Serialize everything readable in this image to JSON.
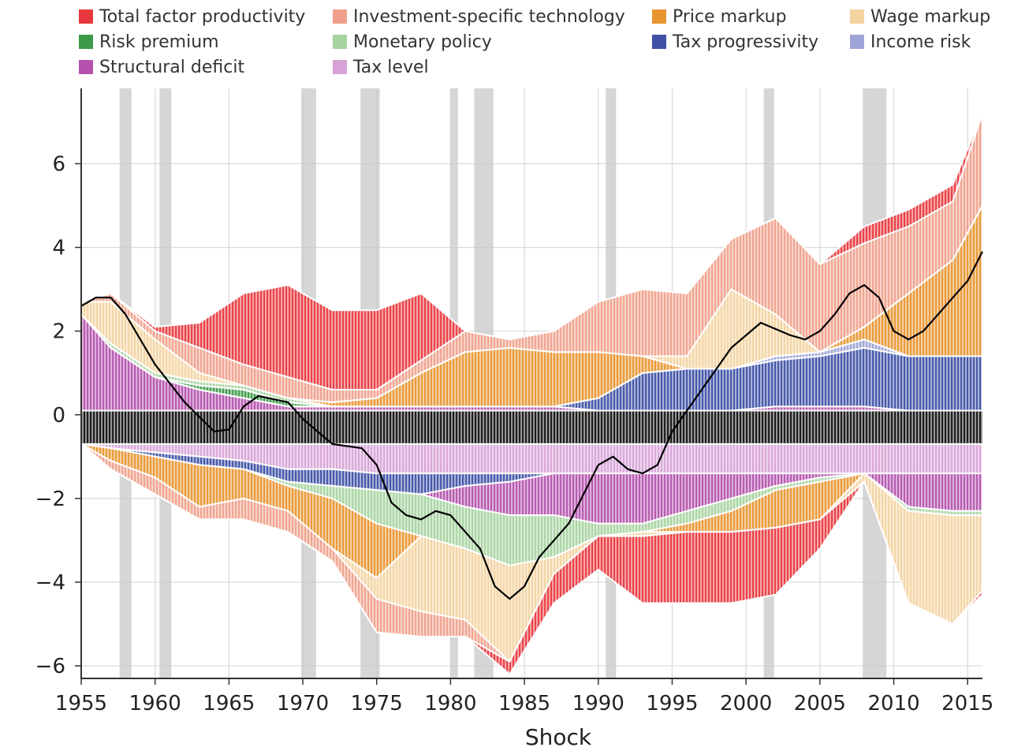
{
  "legend": [
    {
      "name": "Total factor productivity",
      "color": "#e8383d"
    },
    {
      "name": "Investment-specific technology",
      "color": "#f0a08a"
    },
    {
      "name": "Price markup",
      "color": "#e8952f"
    },
    {
      "name": "Wage markup",
      "color": "#f3d3a0"
    },
    {
      "name": "Risk premium",
      "color": "#3a9a47"
    },
    {
      "name": "Monetary policy",
      "color": "#a7d3a0"
    },
    {
      "name": "Tax progressivity",
      "color": "#3f51a6"
    },
    {
      "name": "Income risk",
      "color": "#9ea4d6"
    },
    {
      "name": "Structural deficit",
      "color": "#b452ad"
    },
    {
      "name": "Tax level",
      "color": "#d7a3d7"
    }
  ],
  "chart_data": {
    "type": "area",
    "subtype": "stacked decomposition with contribution bands and overlay line",
    "xlabel": "Shock",
    "ylabel": "",
    "xlim": [
      1955,
      2016
    ],
    "ylim": [
      -6.3,
      7.8
    ],
    "xticks": [
      "1955",
      "1960",
      "1965",
      "1970",
      "1975",
      "1980",
      "1985",
      "1990",
      "1995",
      "2000",
      "2005",
      "2010",
      "2015"
    ],
    "yticks": [
      {
        "value": 6,
        "label": "6"
      },
      {
        "value": 4,
        "label": "4"
      },
      {
        "value": 2,
        "label": "2"
      },
      {
        "value": 0,
        "label": "0"
      },
      {
        "value": -2,
        "label": "−2"
      },
      {
        "value": -4,
        "label": "−4"
      },
      {
        "value": -6,
        "label": "−6"
      }
    ],
    "grid": true,
    "legend_position": "top",
    "recessions": [
      [
        1957.6,
        1958.4
      ],
      [
        1960.3,
        1961.1
      ],
      [
        1969.9,
        1970.9
      ],
      [
        1973.9,
        1975.2
      ],
      [
        1980.0,
        1980.5
      ],
      [
        1981.6,
        1982.9
      ],
      [
        1990.5,
        1991.2
      ],
      [
        2001.2,
        2001.9
      ],
      [
        2007.9,
        2009.5
      ]
    ],
    "x": [
      1955,
      1957,
      1960,
      1963,
      1966,
      1969,
      1972,
      1975,
      1978,
      1981,
      1984,
      1987,
      1990,
      1993,
      1996,
      1999,
      2002,
      2005,
      2008,
      2011,
      2014,
      2016
    ],
    "line": {
      "name": "",
      "color": "#000000",
      "x": [
        1955,
        1956,
        1957,
        1958,
        1960,
        1962,
        1964,
        1965,
        1966,
        1967,
        1969,
        1970,
        1972,
        1974,
        1975,
        1976,
        1977,
        1978,
        1979,
        1980,
        1981,
        1982,
        1983,
        1984,
        1985,
        1986,
        1988,
        1990,
        1991,
        1992,
        1993,
        1994,
        1995,
        1997,
        1999,
        2001,
        2003,
        2004,
        2005,
        2006,
        2007,
        2008,
        2009,
        2010,
        2011,
        2012,
        2013,
        2014,
        2015,
        2016
      ],
      "values": [
        2.6,
        2.8,
        2.8,
        2.4,
        1.2,
        0.3,
        -0.4,
        -0.35,
        0.2,
        0.45,
        0.3,
        -0.1,
        -0.7,
        -0.8,
        -1.2,
        -2.1,
        -2.4,
        -2.5,
        -2.3,
        -2.4,
        -2.8,
        -3.2,
        -4.1,
        -4.4,
        -4.1,
        -3.4,
        -2.6,
        -1.2,
        -1.0,
        -1.3,
        -1.4,
        -1.2,
        -0.4,
        0.6,
        1.6,
        2.2,
        1.9,
        1.8,
        2.0,
        2.4,
        2.9,
        3.1,
        2.8,
        2.0,
        1.8,
        2.0,
        2.4,
        2.8,
        3.2,
        3.9
      ]
    },
    "series": [
      {
        "name": "Structural deficit",
        "side": "positive",
        "values": [
          2.3,
          1.5,
          0.8,
          0.5,
          0.3,
          0.1,
          0.1,
          0.1,
          0.1,
          0.1,
          0.1,
          0.1,
          0.0,
          0.0,
          0.0,
          0.0,
          0.1,
          0.1,
          0.1,
          0.0,
          0.0,
          0.0
        ]
      },
      {
        "name": "Tax progressivity",
        "side": "positive",
        "values": [
          0.0,
          0.0,
          0.0,
          0.0,
          0.0,
          0.0,
          0.0,
          0.0,
          0.0,
          0.0,
          0.0,
          0.0,
          0.3,
          0.9,
          1.0,
          1.0,
          1.1,
          1.2,
          1.4,
          1.3,
          1.3,
          1.3
        ]
      },
      {
        "name": "Income risk",
        "side": "positive",
        "values": [
          0.0,
          0.0,
          0.0,
          0.0,
          0.0,
          0.0,
          0.0,
          0.0,
          0.0,
          0.0,
          0.0,
          0.0,
          0.0,
          0.0,
          0.0,
          0.0,
          0.1,
          0.1,
          0.2,
          0.0,
          0.0,
          0.0
        ]
      },
      {
        "name": "Risk premium",
        "side": "positive",
        "values": [
          0.0,
          0.0,
          0.0,
          0.1,
          0.2,
          0.1,
          0.0,
          0.0,
          0.0,
          0.0,
          0.0,
          0.0,
          0.0,
          0.0,
          0.0,
          0.0,
          0.0,
          0.0,
          0.0,
          0.0,
          0.0,
          0.0
        ]
      },
      {
        "name": "Monetary policy",
        "side": "positive",
        "values": [
          0.0,
          0.1,
          0.1,
          0.1,
          0.1,
          0.1,
          0.0,
          0.0,
          0.0,
          0.0,
          0.0,
          0.0,
          0.0,
          0.0,
          0.0,
          0.0,
          0.0,
          0.0,
          0.0,
          0.0,
          0.0,
          0.0
        ]
      },
      {
        "name": "Price markup",
        "side": "positive",
        "values": [
          0.0,
          0.0,
          0.0,
          0.0,
          0.0,
          0.0,
          0.1,
          0.2,
          0.8,
          1.3,
          1.4,
          1.3,
          1.1,
          0.4,
          0.0,
          0.0,
          0.0,
          0.0,
          0.3,
          1.5,
          2.3,
          3.6
        ]
      },
      {
        "name": "Wage markup",
        "side": "positive",
        "values": [
          0.3,
          1.0,
          0.8,
          0.2,
          0.0,
          0.0,
          0.0,
          0.0,
          0.0,
          0.0,
          0.0,
          0.0,
          0.0,
          0.0,
          0.3,
          1.9,
          1.0,
          0.0,
          0.0,
          0.0,
          0.0,
          0.0
        ]
      },
      {
        "name": "Investment-specific technology",
        "side": "positive",
        "values": [
          0.0,
          0.2,
          0.2,
          0.6,
          0.5,
          0.5,
          0.3,
          0.2,
          0.3,
          0.5,
          0.2,
          0.5,
          1.2,
          1.6,
          1.5,
          1.2,
          2.3,
          2.1,
          2.0,
          1.6,
          1.4,
          2.2
        ]
      },
      {
        "name": "Total factor productivity",
        "side": "positive",
        "values": [
          0.0,
          0.0,
          0.1,
          0.6,
          1.7,
          2.2,
          1.9,
          1.9,
          1.6,
          0.0,
          0.0,
          0.0,
          0.0,
          0.0,
          0.0,
          0.0,
          0.0,
          0.0,
          0.4,
          0.4,
          0.4,
          0.0
        ]
      },
      {
        "name": "Tax level",
        "side": "negative",
        "values": [
          0.0,
          0.1,
          0.2,
          0.3,
          0.4,
          0.6,
          0.6,
          0.7,
          0.7,
          0.7,
          0.7,
          0.7,
          0.7,
          0.7,
          0.7,
          0.7,
          0.7,
          0.7,
          0.7,
          0.7,
          0.7,
          0.7
        ]
      },
      {
        "name": "Tax progressivity",
        "side": "negative",
        "values": [
          0.0,
          0.0,
          0.1,
          0.2,
          0.2,
          0.3,
          0.4,
          0.4,
          0.5,
          0.3,
          0.2,
          0.0,
          0.0,
          0.0,
          0.0,
          0.0,
          0.0,
          0.0,
          0.0,
          0.0,
          0.0,
          0.0
        ]
      },
      {
        "name": "Structural deficit",
        "side": "negative",
        "values": [
          0.0,
          0.0,
          0.0,
          0.0,
          0.0,
          0.0,
          0.0,
          0.0,
          0.0,
          0.5,
          0.8,
          1.0,
          1.2,
          1.2,
          0.9,
          0.6,
          0.3,
          0.1,
          0.0,
          0.8,
          0.9,
          0.9
        ]
      },
      {
        "name": "Monetary policy",
        "side": "negative",
        "values": [
          0.0,
          0.0,
          0.0,
          0.0,
          0.0,
          0.1,
          0.3,
          0.8,
          1.0,
          1.0,
          1.2,
          1.0,
          0.3,
          0.2,
          0.3,
          0.3,
          0.1,
          0.1,
          0.0,
          0.1,
          0.1,
          0.1
        ]
      },
      {
        "name": "Price markup",
        "side": "negative",
        "values": [
          0.0,
          0.3,
          0.5,
          1.0,
          0.7,
          0.6,
          1.2,
          1.3,
          0.0,
          0.0,
          0.0,
          0.0,
          0.0,
          0.0,
          0.2,
          0.5,
          0.9,
          0.9,
          0.0,
          0.0,
          0.0,
          0.0
        ]
      },
      {
        "name": "Wage markup",
        "side": "negative",
        "values": [
          0.0,
          0.0,
          0.0,
          0.0,
          0.0,
          0.0,
          0.0,
          0.5,
          1.8,
          1.7,
          2.3,
          0.4,
          0.0,
          0.1,
          0.0,
          0.0,
          0.0,
          0.0,
          0.2,
          2.2,
          2.6,
          1.8
        ]
      },
      {
        "name": "Investment-specific technology",
        "side": "negative",
        "values": [
          0.0,
          0.2,
          0.4,
          0.3,
          0.5,
          0.5,
          0.3,
          0.8,
          0.6,
          0.4,
          0.0,
          0.0,
          0.0,
          0.0,
          0.0,
          0.0,
          0.0,
          0.0,
          0.0,
          0.0,
          0.0,
          0.0
        ]
      },
      {
        "name": "Total factor productivity",
        "side": "negative",
        "values": [
          0.0,
          0.0,
          0.0,
          0.0,
          0.0,
          0.0,
          0.0,
          0.0,
          0.0,
          0.0,
          0.3,
          0.7,
          0.8,
          1.6,
          1.7,
          1.7,
          1.6,
          0.7,
          0.0,
          0.0,
          0.0,
          0.1
        ]
      }
    ]
  }
}
